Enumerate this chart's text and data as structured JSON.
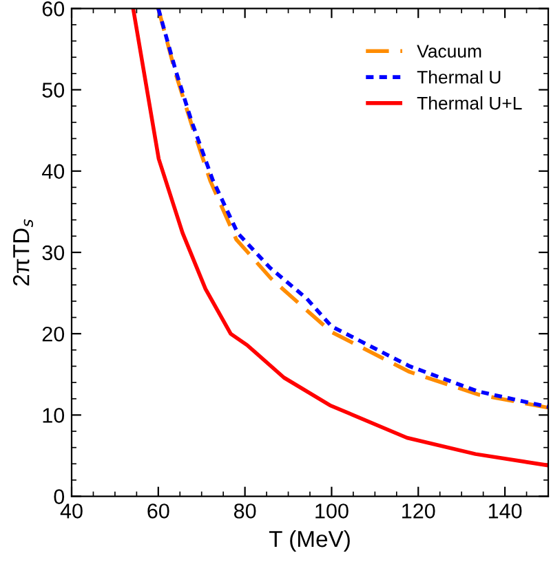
{
  "chart_data": {
    "type": "line",
    "xlabel": "T (MeV)",
    "ylabel": "2πTD$_{s}$",
    "xlim": [
      40,
      150
    ],
    "ylim": [
      0,
      60
    ],
    "xticks": [
      40,
      60,
      80,
      100,
      120,
      140
    ],
    "yticks": [
      0,
      10,
      20,
      30,
      40,
      50,
      60
    ],
    "grid": false,
    "legend": "top right",
    "marker": "none",
    "series": [
      {
        "name": "Vacuum",
        "color": "#ff8c00",
        "line_style": "dashed",
        "x": [
          60,
          64,
          68,
          72,
          78,
          86,
          94,
          100,
          118,
          134,
          150
        ],
        "values": [
          60,
          52.0,
          45.2,
          38.8,
          31.6,
          26.8,
          23.0,
          20.2,
          15.3,
          12.5,
          10.9
        ]
      },
      {
        "name": "Thermal U",
        "color": "#0000ff",
        "line_style": "dotted",
        "x": [
          60,
          64,
          67.7,
          72.5,
          78.3,
          85.8,
          94.3,
          100,
          118,
          133.8,
          150
        ],
        "values": [
          60,
          52.4,
          46.1,
          39.0,
          32.4,
          28.1,
          24.3,
          20.9,
          16.0,
          12.9,
          11.0
        ]
      },
      {
        "name": "Thermal U+L",
        "color": "#ff0000",
        "line_style": "solid",
        "x": [
          54.2,
          60.1,
          65.6,
          70.9,
          76.7,
          80.5,
          89,
          99.6,
          117.4,
          133.2,
          150
        ],
        "values": [
          60,
          41.5,
          32.4,
          25.5,
          20.0,
          18.6,
          14.6,
          11.2,
          7.2,
          5.2,
          3.8
        ]
      }
    ]
  }
}
